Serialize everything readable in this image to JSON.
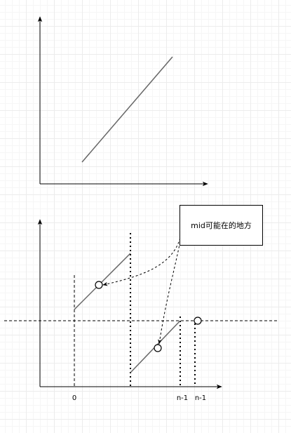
{
  "annotation": {
    "text": "mid可能在的地方"
  },
  "x_labels": {
    "zero": "0",
    "n_minus_1_a": "n-1",
    "n_minus_1_b": "n-1"
  },
  "colors": {
    "axis": "#000000",
    "line": "#666666",
    "dashed": "#000000"
  }
}
